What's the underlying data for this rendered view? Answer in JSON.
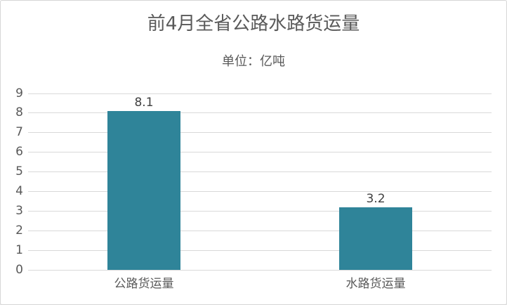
{
  "chart": {
    "title": "前4月全省公路水路货运量",
    "subtitle": "单位：亿吨"
  },
  "chart_data": {
    "type": "bar",
    "title": "前4月全省公路水路货运量",
    "subtitle": "单位：亿吨",
    "categories": [
      "公路货运量",
      "水路货运量"
    ],
    "values": [
      8.1,
      3.2
    ],
    "value_labels": [
      "8.1",
      "3.2"
    ],
    "xlabel": "",
    "ylabel": "",
    "ylim": [
      0,
      9
    ],
    "ytick_step": 1,
    "ytick_labels": [
      "0",
      "1",
      "2",
      "3",
      "4",
      "5",
      "6",
      "7",
      "8",
      "9"
    ],
    "grid": true,
    "legend": false,
    "colors": {
      "bar": "#2F8499",
      "gridline": "#d9d9d9",
      "axis_text": "#595959",
      "title_text": "#595959",
      "value_label_text": "#404040",
      "background": "#ffffff"
    }
  }
}
